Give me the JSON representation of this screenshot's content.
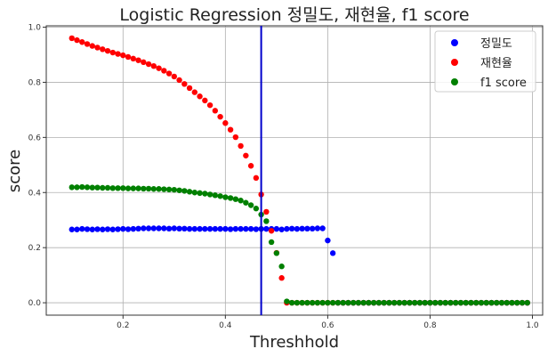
{
  "chart_data": {
    "type": "scatter",
    "title": "Logistic Regression 정밀도, 재현율, f1 score",
    "xlabel": "Threshhold",
    "ylabel": "score",
    "xlim": [
      0.05,
      1.02
    ],
    "ylim": [
      -0.045,
      1.005
    ],
    "x_ticks": [
      0.2,
      0.4,
      0.6,
      0.8,
      1.0
    ],
    "y_ticks": [
      0.0,
      0.2,
      0.4,
      0.6,
      0.8,
      1.0
    ],
    "x_tick_labels": [
      "0.2",
      "0.4",
      "0.6",
      "0.8",
      "1.0"
    ],
    "y_tick_labels": [
      "0.0",
      "0.2",
      "0.4",
      "0.6",
      "0.8",
      "1.0"
    ],
    "grid": true,
    "legend_position": "top-right",
    "vline": {
      "x": 0.47,
      "color": "#0000cc"
    },
    "x_start": 0.1,
    "x_step": 0.01,
    "series": [
      {
        "name": "정밀도",
        "color": "#0000ff",
        "values": [
          0.266,
          0.266,
          0.268,
          0.267,
          0.266,
          0.267,
          0.266,
          0.267,
          0.266,
          0.267,
          0.268,
          0.267,
          0.268,
          0.269,
          0.27,
          0.27,
          0.27,
          0.27,
          0.27,
          0.269,
          0.27,
          0.269,
          0.269,
          0.268,
          0.268,
          0.268,
          0.268,
          0.268,
          0.268,
          0.268,
          0.268,
          0.267,
          0.268,
          0.268,
          0.268,
          0.268,
          0.267,
          0.268,
          0.268,
          0.268,
          0.268,
          0.266,
          0.268,
          0.269,
          0.268,
          0.269,
          0.269,
          0.269,
          0.27,
          0.27,
          0.226,
          0.18,
          0.0,
          0.0,
          0.0,
          0.0,
          0.0,
          0.0,
          0.0,
          0.0,
          0.0,
          0.0,
          0.0,
          0.0,
          0.0,
          0.0,
          0.0,
          0.0,
          0.0,
          0.0,
          0.0,
          0.0,
          0.0,
          0.0,
          0.0,
          0.0,
          0.0,
          0.0,
          0.0,
          0.0,
          0.0,
          0.0,
          0.0,
          0.0,
          0.0,
          0.0,
          0.0,
          0.0,
          0.0,
          0.0
        ]
      },
      {
        "name": "재현율",
        "color": "#ff0000",
        "values": [
          0.96,
          0.953,
          0.946,
          0.939,
          0.932,
          0.926,
          0.92,
          0.914,
          0.908,
          0.903,
          0.898,
          0.892,
          0.886,
          0.88,
          0.873,
          0.866,
          0.859,
          0.851,
          0.842,
          0.832,
          0.821,
          0.808,
          0.794,
          0.779,
          0.764,
          0.749,
          0.734,
          0.717,
          0.697,
          0.675,
          0.652,
          0.628,
          0.601,
          0.569,
          0.534,
          0.497,
          0.453,
          0.393,
          0.33,
          0.261,
          0.181,
          0.09,
          0.0,
          0.0,
          0.0,
          0.0,
          0.0,
          0.0,
          0.0,
          0.0,
          0.0,
          0.0,
          0.0,
          0.0,
          0.0,
          0.0,
          0.0,
          0.0,
          0.0,
          0.0,
          0.0,
          0.0,
          0.0,
          0.0,
          0.0,
          0.0,
          0.0,
          0.0,
          0.0,
          0.0,
          0.0,
          0.0,
          0.0,
          0.0,
          0.0,
          0.0,
          0.0,
          0.0,
          0.0,
          0.0,
          0.0,
          0.0,
          0.0,
          0.0,
          0.0,
          0.0,
          0.0,
          0.0,
          0.0,
          0.0
        ]
      },
      {
        "name": "f1 score",
        "color": "#008000",
        "values": [
          0.419,
          0.419,
          0.42,
          0.419,
          0.418,
          0.418,
          0.417,
          0.417,
          0.416,
          0.416,
          0.416,
          0.415,
          0.415,
          0.415,
          0.414,
          0.414,
          0.413,
          0.413,
          0.412,
          0.411,
          0.41,
          0.408,
          0.406,
          0.403,
          0.4,
          0.398,
          0.396,
          0.393,
          0.39,
          0.387,
          0.383,
          0.38,
          0.376,
          0.371,
          0.363,
          0.354,
          0.342,
          0.32,
          0.296,
          0.22,
          0.18,
          0.132,
          0.005,
          0.0,
          0.0,
          0.0,
          0.0,
          0.0,
          0.0,
          0.0,
          0.0,
          0.0,
          0.0,
          0.0,
          0.0,
          0.0,
          0.0,
          0.0,
          0.0,
          0.0,
          0.0,
          0.0,
          0.0,
          0.0,
          0.0,
          0.0,
          0.0,
          0.0,
          0.0,
          0.0,
          0.0,
          0.0,
          0.0,
          0.0,
          0.0,
          0.0,
          0.0,
          0.0,
          0.0,
          0.0,
          0.0,
          0.0,
          0.0,
          0.0,
          0.0,
          0.0,
          0.0,
          0.0,
          0.0,
          0.0
        ]
      }
    ]
  }
}
